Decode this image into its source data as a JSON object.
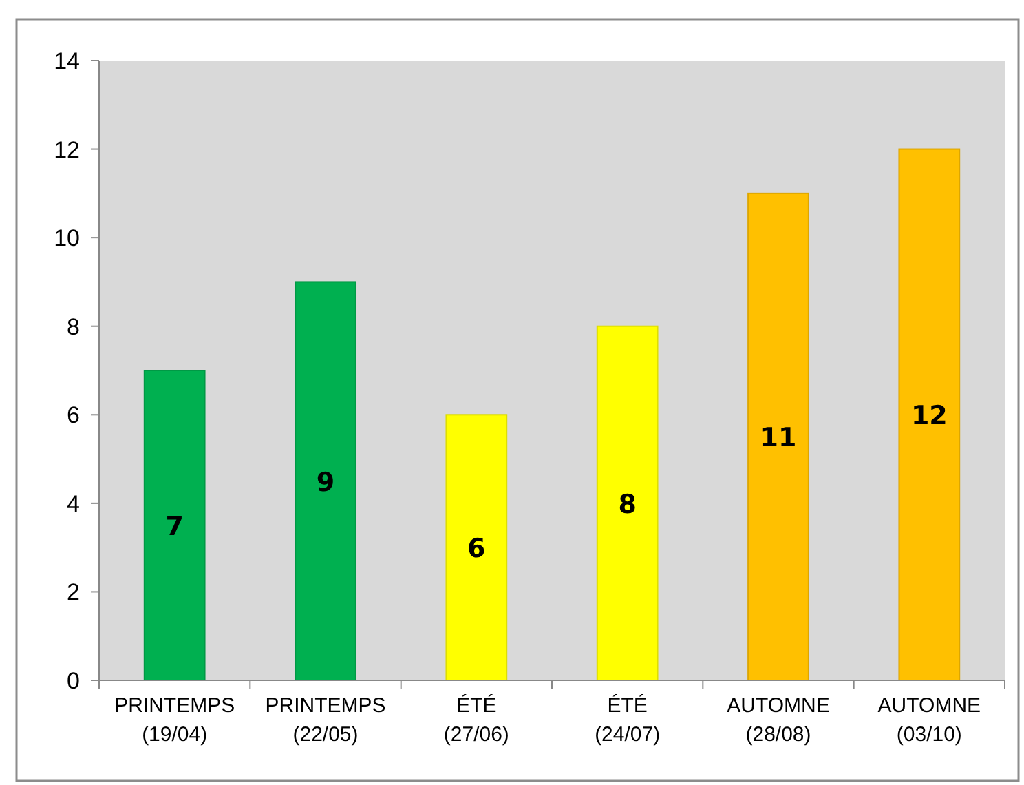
{
  "chart_data": {
    "type": "bar",
    "categories": [
      "PRINTEMPS\n(19/04)",
      "PRINTEMPS\n(22/05)",
      "ÉTÉ\n(27/06)",
      "ÉTÉ\n(24/07)",
      "AUTOMNE\n(28/08)",
      "AUTOMNE\n(03/10)"
    ],
    "values": [
      7,
      9,
      6,
      8,
      11,
      12
    ],
    "colors": [
      "#00b050",
      "#00b050",
      "#ffff00",
      "#ffff00",
      "#ffc000",
      "#ffc000"
    ],
    "ylim": [
      0,
      14
    ],
    "yticks": [
      0,
      2,
      4,
      6,
      8,
      10,
      12,
      14
    ],
    "data_labels": true
  }
}
